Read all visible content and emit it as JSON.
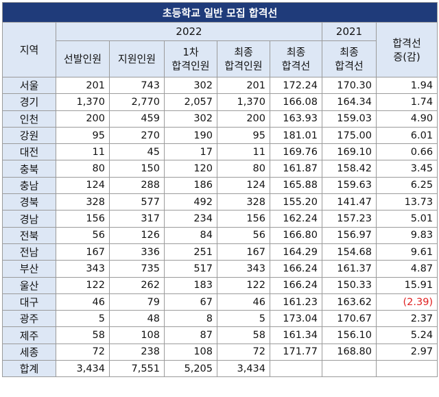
{
  "title": "초등학교 일반 모집 합격선",
  "header": {
    "region": "지역",
    "year_2022": "2022",
    "year_2021": "2021",
    "change_line1": "합격선",
    "change_line2": "증(감)",
    "columns": [
      {
        "line1": "선발인원",
        "line2": ""
      },
      {
        "line1": "지원인원",
        "line2": ""
      },
      {
        "line1": "1차",
        "line2": "합격인원"
      },
      {
        "line1": "최종",
        "line2": "합격인원"
      },
      {
        "line1": "최종",
        "line2": "합격선"
      },
      {
        "line1": "최종",
        "line2": "합격선"
      }
    ]
  },
  "rows": [
    {
      "region": "서울",
      "selected": "201",
      "applied": "743",
      "first_pass": "302",
      "final_pass": "201",
      "cutoff_2022": "172.24",
      "cutoff_2021": "170.30",
      "change": "1.94"
    },
    {
      "region": "경기",
      "selected": "1,370",
      "applied": "2,770",
      "first_pass": "2,057",
      "final_pass": "1,370",
      "cutoff_2022": "166.08",
      "cutoff_2021": "164.34",
      "change": "1.74"
    },
    {
      "region": "인천",
      "selected": "200",
      "applied": "459",
      "first_pass": "302",
      "final_pass": "200",
      "cutoff_2022": "163.93",
      "cutoff_2021": "159.03",
      "change": "4.90"
    },
    {
      "region": "강원",
      "selected": "95",
      "applied": "270",
      "first_pass": "190",
      "final_pass": "95",
      "cutoff_2022": "181.01",
      "cutoff_2021": "175.00",
      "change": "6.01"
    },
    {
      "region": "대전",
      "selected": "11",
      "applied": "45",
      "first_pass": "17",
      "final_pass": "11",
      "cutoff_2022": "169.76",
      "cutoff_2021": "169.10",
      "change": "0.66"
    },
    {
      "region": "충북",
      "selected": "80",
      "applied": "150",
      "first_pass": "120",
      "final_pass": "80",
      "cutoff_2022": "161.87",
      "cutoff_2021": "158.42",
      "change": "3.45"
    },
    {
      "region": "충남",
      "selected": "124",
      "applied": "288",
      "first_pass": "186",
      "final_pass": "124",
      "cutoff_2022": "165.88",
      "cutoff_2021": "159.63",
      "change": "6.25"
    },
    {
      "region": "경북",
      "selected": "328",
      "applied": "577",
      "first_pass": "492",
      "final_pass": "328",
      "cutoff_2022": "155.20",
      "cutoff_2021": "141.47",
      "change": "13.73"
    },
    {
      "region": "경남",
      "selected": "156",
      "applied": "317",
      "first_pass": "234",
      "final_pass": "156",
      "cutoff_2022": "162.24",
      "cutoff_2021": "157.23",
      "change": "5.01"
    },
    {
      "region": "전북",
      "selected": "56",
      "applied": "126",
      "first_pass": "84",
      "final_pass": "56",
      "cutoff_2022": "166.80",
      "cutoff_2021": "156.97",
      "change": "9.83"
    },
    {
      "region": "전남",
      "selected": "167",
      "applied": "336",
      "first_pass": "251",
      "final_pass": "167",
      "cutoff_2022": "164.29",
      "cutoff_2021": "154.68",
      "change": "9.61"
    },
    {
      "region": "부산",
      "selected": "343",
      "applied": "735",
      "first_pass": "517",
      "final_pass": "343",
      "cutoff_2022": "166.24",
      "cutoff_2021": "161.37",
      "change": "4.87"
    },
    {
      "region": "울산",
      "selected": "122",
      "applied": "262",
      "first_pass": "183",
      "final_pass": "122",
      "cutoff_2022": "166.24",
      "cutoff_2021": "150.33",
      "change": "15.91"
    },
    {
      "region": "대구",
      "selected": "46",
      "applied": "79",
      "first_pass": "67",
      "final_pass": "46",
      "cutoff_2022": "161.23",
      "cutoff_2021": "163.62",
      "change": "(2.39)",
      "negative": true
    },
    {
      "region": "광주",
      "selected": "5",
      "applied": "48",
      "first_pass": "8",
      "final_pass": "5",
      "cutoff_2022": "173.04",
      "cutoff_2021": "170.67",
      "change": "2.37"
    },
    {
      "region": "제주",
      "selected": "58",
      "applied": "108",
      "first_pass": "87",
      "final_pass": "58",
      "cutoff_2022": "161.34",
      "cutoff_2021": "156.10",
      "change": "5.24"
    },
    {
      "region": "세종",
      "selected": "72",
      "applied": "238",
      "first_pass": "108",
      "final_pass": "72",
      "cutoff_2022": "171.77",
      "cutoff_2021": "168.80",
      "change": "2.97"
    }
  ],
  "total": {
    "region": "합계",
    "selected": "3,434",
    "applied": "7,551",
    "first_pass": "5,205",
    "final_pass": "3,434",
    "cutoff_2022": "",
    "cutoff_2021": "",
    "change": ""
  },
  "colors": {
    "title_bg": "#1f3b7a",
    "header_bg": "#dde7f5",
    "negative": "#e02020"
  }
}
